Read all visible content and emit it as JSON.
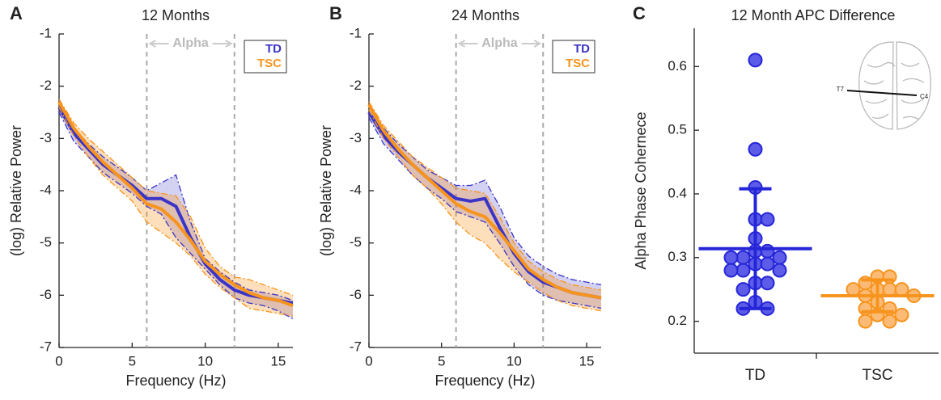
{
  "chart_data": [
    {
      "type": "line",
      "panel_label": "A",
      "title": "12 Months",
      "x_label": "Frequency (Hz)",
      "y_label": "(log) Relative Power",
      "x": [
        0,
        1,
        2,
        3,
        4,
        5,
        6,
        7,
        8,
        9,
        10,
        11,
        12,
        13,
        14,
        15,
        16
      ],
      "xlim": [
        0,
        16
      ],
      "ylim": [
        -7,
        -1
      ],
      "xticks": [
        0,
        5,
        10,
        15
      ],
      "yticks": [
        -7,
        -6,
        -5,
        -4,
        -3,
        -2,
        -1
      ],
      "vlines": [
        6,
        12
      ],
      "annotation": "Alpha",
      "legend": "upper right",
      "series": [
        {
          "name": "TD",
          "color": "#3a34c8",
          "values": [
            -2.4,
            -2.9,
            -3.2,
            -3.5,
            -3.7,
            -3.9,
            -4.15,
            -4.15,
            -4.3,
            -4.9,
            -5.4,
            -5.7,
            -5.9,
            -6.0,
            -6.05,
            -6.1,
            -6.15
          ],
          "upper": [
            -2.35,
            -2.8,
            -3.1,
            -3.35,
            -3.55,
            -3.75,
            -4.0,
            -3.85,
            -3.7,
            -4.6,
            -5.3,
            -5.55,
            -5.75,
            -5.9,
            -5.95,
            -6.0,
            -6.1
          ],
          "lower": [
            -2.5,
            -3.05,
            -3.35,
            -3.65,
            -3.85,
            -4.05,
            -4.3,
            -4.45,
            -4.9,
            -5.2,
            -5.5,
            -5.8,
            -6.05,
            -6.15,
            -6.2,
            -6.3,
            -6.45
          ]
        },
        {
          "name": "TSC",
          "color": "#f7941d",
          "values": [
            -2.3,
            -2.8,
            -3.15,
            -3.45,
            -3.7,
            -3.95,
            -4.25,
            -4.35,
            -4.6,
            -4.95,
            -5.35,
            -5.6,
            -5.8,
            -5.95,
            -6.05,
            -6.1,
            -6.2
          ],
          "upper": [
            -2.25,
            -2.7,
            -3.0,
            -3.25,
            -3.5,
            -3.75,
            -4.0,
            -4.05,
            -4.1,
            -4.5,
            -5.1,
            -5.45,
            -5.65,
            -5.7,
            -5.8,
            -5.9,
            -6.0
          ],
          "lower": [
            -2.4,
            -2.95,
            -3.35,
            -3.7,
            -3.95,
            -4.2,
            -4.6,
            -4.8,
            -5.0,
            -5.25,
            -5.6,
            -5.85,
            -6.05,
            -6.25,
            -6.3,
            -6.35,
            -6.4
          ]
        }
      ]
    },
    {
      "type": "line",
      "panel_label": "B",
      "title": "24 Months",
      "x_label": "Frequency (Hz)",
      "y_label": "(log) Relative Power",
      "x": [
        0,
        1,
        2,
        3,
        4,
        5,
        6,
        7,
        8,
        9,
        10,
        11,
        12,
        13,
        14,
        15,
        16
      ],
      "xlim": [
        0,
        16
      ],
      "ylim": [
        -7,
        -1
      ],
      "xticks": [
        0,
        5,
        10,
        15
      ],
      "yticks": [
        -7,
        -6,
        -5,
        -4,
        -3,
        -2,
        -1
      ],
      "vlines": [
        6,
        12
      ],
      "annotation": "Alpha",
      "legend": "upper right",
      "series": [
        {
          "name": "TD",
          "color": "#3a34c8",
          "values": [
            -2.5,
            -2.95,
            -3.25,
            -3.5,
            -3.75,
            -3.95,
            -4.15,
            -4.2,
            -4.15,
            -4.7,
            -5.2,
            -5.55,
            -5.75,
            -5.85,
            -5.95,
            -6.0,
            -6.05
          ],
          "upper": [
            -2.4,
            -2.8,
            -3.1,
            -3.35,
            -3.6,
            -3.75,
            -3.9,
            -3.9,
            -3.8,
            -4.3,
            -4.9,
            -5.25,
            -5.45,
            -5.6,
            -5.7,
            -5.75,
            -5.8
          ],
          "lower": [
            -2.6,
            -3.1,
            -3.4,
            -3.7,
            -3.95,
            -4.15,
            -4.4,
            -4.5,
            -4.6,
            -5.0,
            -5.45,
            -5.8,
            -6.0,
            -6.1,
            -6.15,
            -6.2,
            -6.25
          ]
        },
        {
          "name": "TSC",
          "color": "#f7941d",
          "values": [
            -2.35,
            -2.85,
            -3.2,
            -3.5,
            -3.75,
            -4.0,
            -4.25,
            -4.4,
            -4.5,
            -4.8,
            -5.15,
            -5.5,
            -5.7,
            -5.85,
            -5.95,
            -6.0,
            -6.05
          ],
          "upper": [
            -2.3,
            -2.75,
            -3.05,
            -3.35,
            -3.55,
            -3.75,
            -3.95,
            -4.0,
            -4.05,
            -4.5,
            -5.0,
            -5.35,
            -5.55,
            -5.7,
            -5.8,
            -5.85,
            -5.9
          ],
          "lower": [
            -2.45,
            -3.0,
            -3.35,
            -3.7,
            -3.95,
            -4.25,
            -4.6,
            -4.85,
            -5.0,
            -5.3,
            -5.55,
            -5.75,
            -5.95,
            -6.1,
            -6.2,
            -6.25,
            -6.3
          ]
        }
      ]
    },
    {
      "type": "strip",
      "panel_label": "C",
      "title": "12 Month APC Difference",
      "y_label": "Alpha Phase Cohernece",
      "categories": [
        "TD",
        "TSC"
      ],
      "ylim": [
        0.15,
        0.66
      ],
      "yticks": [
        0.2,
        0.3,
        0.4,
        0.5,
        0.6
      ],
      "inset_labels": [
        "T7",
        "C4"
      ],
      "groups": [
        {
          "color": "#2626d9",
          "fill": "#4a4ae6",
          "mean": 0.314,
          "error": 0.094,
          "values": [
            0.61,
            0.47,
            0.41,
            0.36,
            0.36,
            0.33,
            0.31,
            0.31,
            0.3,
            0.3,
            0.3,
            0.29,
            0.29,
            0.28,
            0.28,
            0.28,
            0.26,
            0.26,
            0.25,
            0.23,
            0.22,
            0.22
          ]
        },
        {
          "color": "#f7941d",
          "fill": "#fbb467",
          "mean": 0.24,
          "error": 0.025,
          "values": [
            0.27,
            0.27,
            0.26,
            0.25,
            0.25,
            0.25,
            0.25,
            0.24,
            0.24,
            0.23,
            0.22,
            0.22,
            0.21,
            0.21,
            0.2,
            0.2
          ]
        }
      ]
    }
  ]
}
